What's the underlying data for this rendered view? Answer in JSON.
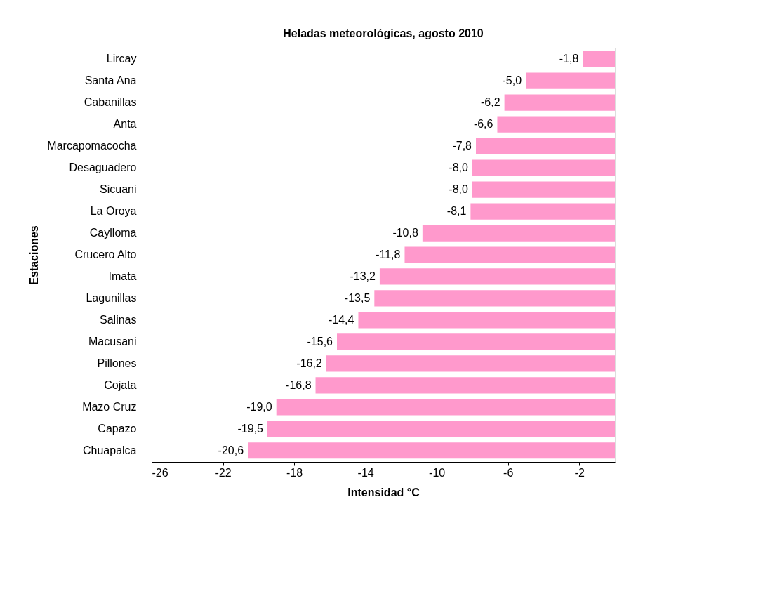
{
  "chart_data": {
    "type": "bar",
    "orientation": "horizontal",
    "title": "Heladas meteorológicas, agosto 2010",
    "xlabel": "Intensidad °C",
    "ylabel": "Estaciones",
    "categories": [
      "Lircay",
      "Santa Ana",
      "Cabanillas",
      "Anta",
      "Marcapomacocha",
      "Desaguadero",
      "Sicuani",
      "La Oroya",
      "Caylloma",
      "Crucero Alto",
      "Imata",
      "Lagunillas",
      "Salinas",
      "Macusani",
      "Pillones",
      "Cojata",
      "Mazo Cruz",
      "Capazo",
      "Chuapalca"
    ],
    "values": [
      -1.8,
      -5.0,
      -6.2,
      -6.6,
      -7.8,
      -8.0,
      -8.0,
      -8.1,
      -10.8,
      -11.8,
      -13.2,
      -13.5,
      -14.4,
      -15.6,
      -16.2,
      -16.8,
      -19.0,
      -19.5,
      -20.6
    ],
    "value_labels": [
      "-1,8",
      "-5,0",
      "-6,2",
      "-6,6",
      "-7,8",
      "-8,0",
      "-8,0",
      "-8,1",
      "-10,8",
      "-11,8",
      "-13,2",
      "-13,5",
      "-14,4",
      "-15,6",
      "-16,2",
      "-16,8",
      "-19,0",
      "-19,5",
      "-20,6"
    ],
    "color": "#ff99cc",
    "xlim": [
      -26,
      0
    ],
    "xticks": [
      -26,
      -22,
      -18,
      -14,
      -10,
      -6,
      -2
    ],
    "grid": false
  }
}
